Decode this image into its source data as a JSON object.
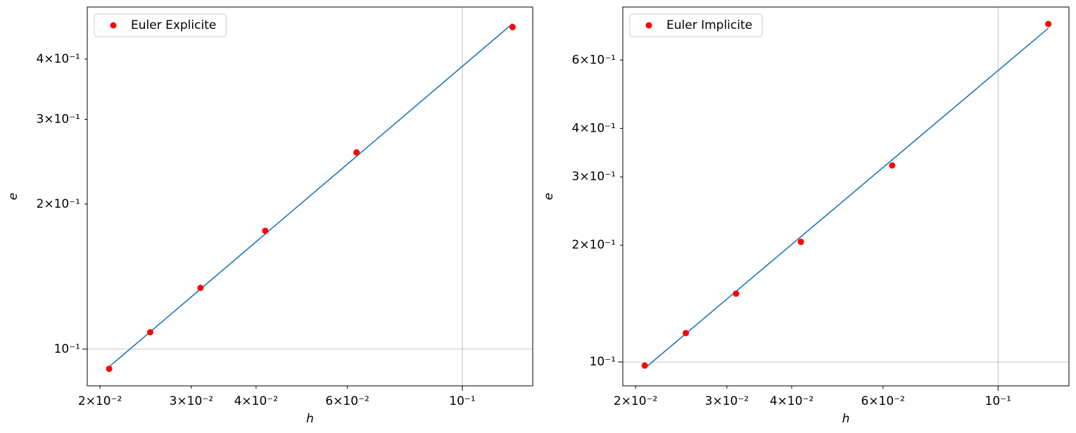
{
  "chart_data": [
    {
      "type": "scatter",
      "xlabel": "h",
      "ylabel": "e",
      "xscale": "log",
      "yscale": "log",
      "grid": true,
      "legend": "upper left",
      "x": [
        0.02083,
        0.025,
        0.03125,
        0.04167,
        0.0625,
        0.125
      ],
      "series": [
        {
          "name": "Euler Explicite",
          "color": "#ff0000",
          "values": [
            0.091,
            0.1084,
            0.134,
            0.176,
            0.256,
            0.466
          ]
        }
      ],
      "fit": {
        "color": "#1f77b4",
        "x": [
          0.02083,
          0.125
        ],
        "values": [
          0.0919,
          0.474
        ]
      },
      "xlim": [
        0.0189,
        0.1367
      ],
      "ylim": [
        0.0839,
        0.513
      ],
      "xticks": [
        {
          "value": 0.02,
          "label": "2×10⁻²"
        },
        {
          "value": 0.03,
          "label": "3×10⁻²"
        },
        {
          "value": 0.04,
          "label": "4×10⁻²"
        },
        {
          "value": 0.06,
          "label": "6×10⁻²"
        },
        {
          "value": 0.1,
          "label": "10⁻¹"
        }
      ],
      "yticks": [
        {
          "value": 0.1,
          "label": "10⁻¹"
        },
        {
          "value": 0.2,
          "label": "2×10⁻¹"
        },
        {
          "value": 0.3,
          "label": "3×10⁻¹"
        },
        {
          "value": 0.4,
          "label": "4×10⁻¹"
        }
      ]
    },
    {
      "type": "scatter",
      "xlabel": "h",
      "ylabel": "e",
      "xscale": "log",
      "yscale": "log",
      "grid": true,
      "legend": "upper left",
      "x": [
        0.02083,
        0.025,
        0.03125,
        0.04167,
        0.0625,
        0.125
      ],
      "series": [
        {
          "name": "Euler Implicite",
          "color": "#ff0000",
          "values": [
            0.0979,
            0.1187,
            0.15,
            0.204,
            0.321,
            0.743
          ]
        }
      ],
      "fit": {
        "color": "#1f77b4",
        "x": [
          0.02083,
          0.125
        ],
        "values": [
          0.0963,
          0.725
        ]
      },
      "xlim": [
        0.0189,
        0.137
      ],
      "ylim": [
        0.0868,
        0.822
      ],
      "xticks": [
        {
          "value": 0.02,
          "label": "2×10⁻²"
        },
        {
          "value": 0.03,
          "label": "3×10⁻²"
        },
        {
          "value": 0.04,
          "label": "4×10⁻²"
        },
        {
          "value": 0.06,
          "label": "6×10⁻²"
        },
        {
          "value": 0.1,
          "label": "10⁻¹"
        }
      ],
      "yticks": [
        {
          "value": 0.1,
          "label": "10⁻¹"
        },
        {
          "value": 0.2,
          "label": "2×10⁻¹"
        },
        {
          "value": 0.3,
          "label": "3×10⁻¹"
        },
        {
          "value": 0.4,
          "label": "4×10⁻¹"
        },
        {
          "value": 0.6,
          "label": "6×10⁻¹"
        }
      ]
    }
  ]
}
